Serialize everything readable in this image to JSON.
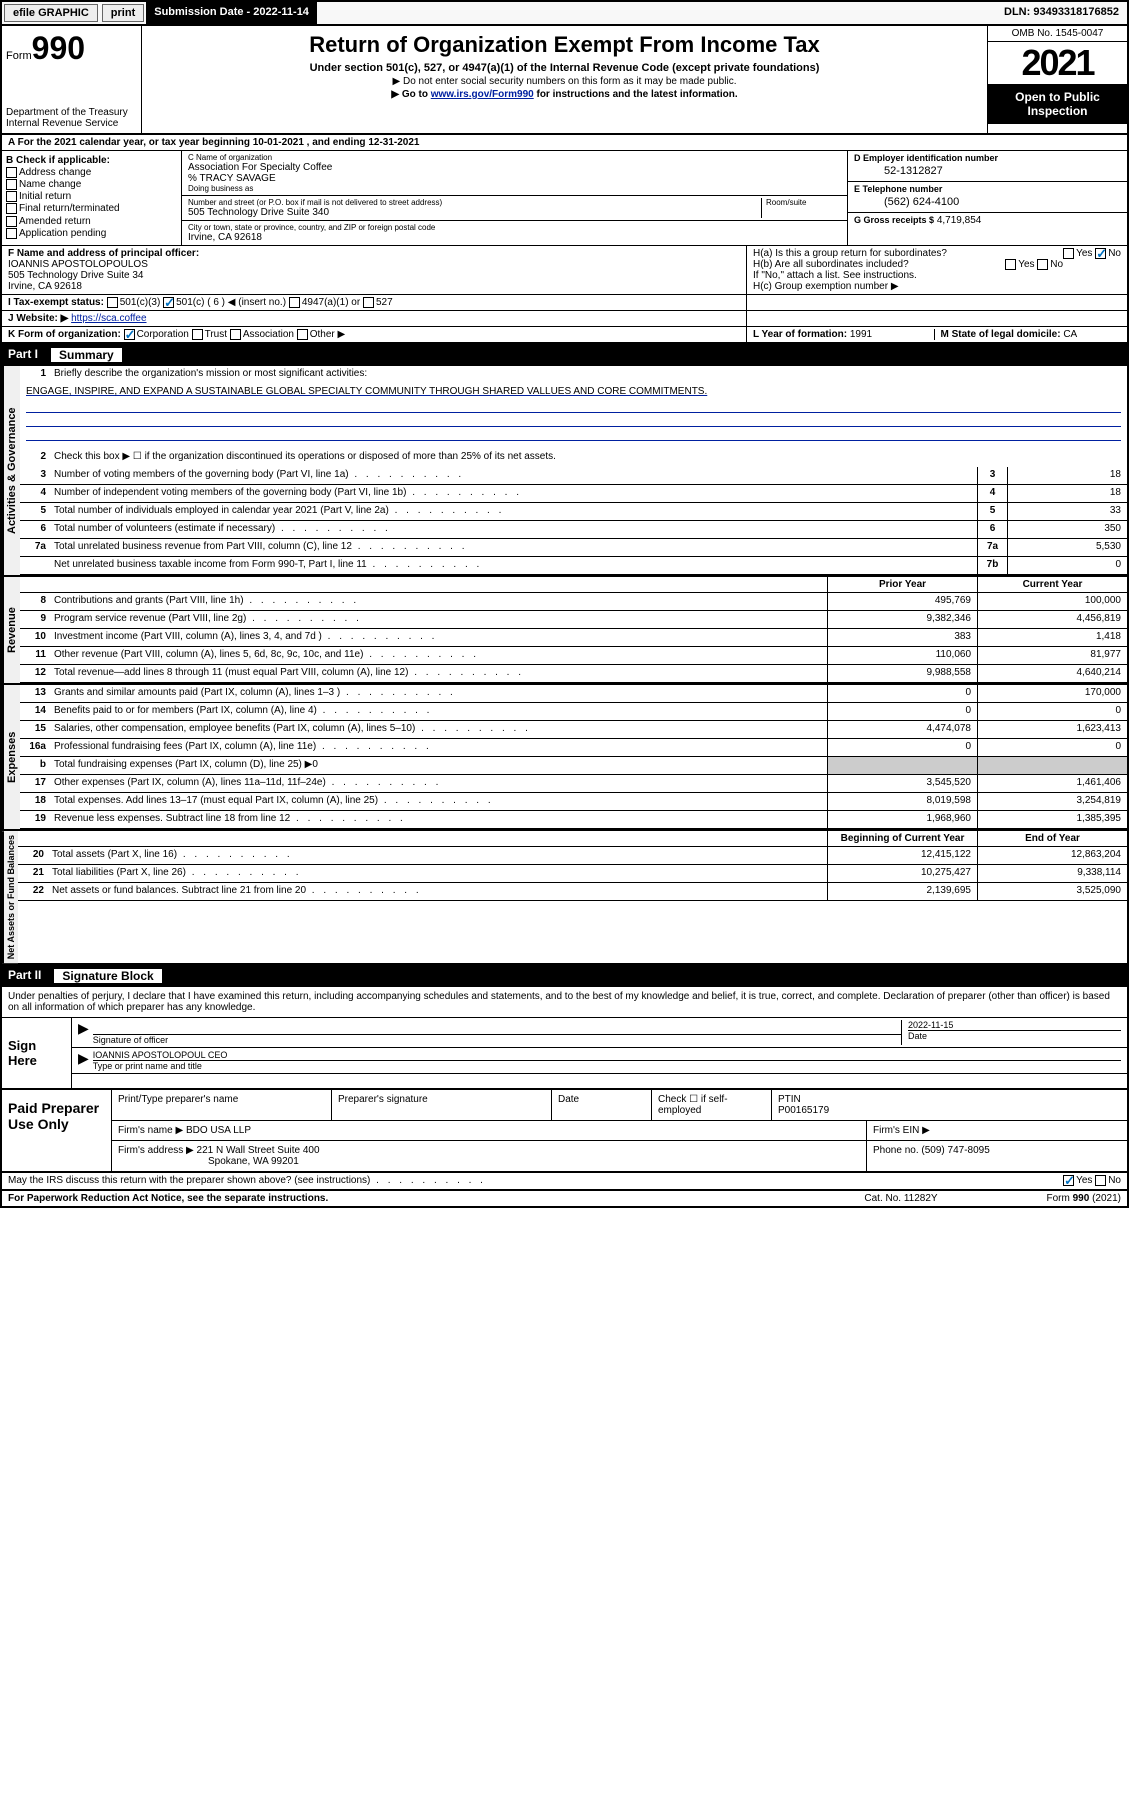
{
  "topbar": {
    "efile": "efile GRAPHIC",
    "print": "print",
    "subdate_label": "Submission Date - 2022-11-14",
    "dln": "DLN: 93493318176852"
  },
  "header": {
    "form_prefix": "Form",
    "form_number": "990",
    "dept": "Department of the Treasury\nInternal Revenue Service",
    "title": "Return of Organization Exempt From Income Tax",
    "subtitle": "Under section 501(c), 527, or 4947(a)(1) of the Internal Revenue Code (except private foundations)",
    "note1": "▶ Do not enter social security numbers on this form as it may be made public.",
    "note2_pre": "▶ Go to ",
    "note2_link": "www.irs.gov/Form990",
    "note2_post": " for instructions and the latest information.",
    "omb": "OMB No. 1545-0047",
    "year": "2021",
    "open_public": "Open to Public Inspection"
  },
  "period": {
    "line_a": "A For the 2021 calendar year, or tax year beginning 10-01-2021   , and ending 12-31-2021"
  },
  "box_b": {
    "label": "B Check if applicable:",
    "items": [
      "Address change",
      "Name change",
      "Initial return",
      "Final return/terminated",
      "Amended return",
      "Application pending"
    ]
  },
  "box_c": {
    "name_label": "C Name of organization",
    "name": "Association For Specialty Coffee",
    "care_of": "% TRACY SAVAGE",
    "dba_label": "Doing business as",
    "street_label": "Number and street (or P.O. box if mail is not delivered to street address)",
    "room_label": "Room/suite",
    "street": "505 Technology Drive Suite 340",
    "city_label": "City or town, state or province, country, and ZIP or foreign postal code",
    "city": "Irvine, CA  92618"
  },
  "box_d": {
    "ein_label": "D Employer identification number",
    "ein": "52-1312827",
    "phone_label": "E Telephone number",
    "phone": "(562) 624-4100",
    "gross_label": "G Gross receipts $",
    "gross": "4,719,854"
  },
  "box_f": {
    "label": "F Name and address of principal officer:",
    "name": "IOANNIS APOSTOLOPOULOS",
    "addr1": "505 Technology Drive Suite 34",
    "addr2": "Irvine, CA  92618"
  },
  "box_h": {
    "ha": "H(a)  Is this a group return for subordinates?",
    "hb": "H(b)  Are all subordinates included?",
    "hb_note": "If \"No,\" attach a list. See instructions.",
    "hc": "H(c)  Group exemption number ▶",
    "yes": "Yes",
    "no": "No"
  },
  "box_i": {
    "label": "I   Tax-exempt status:",
    "opt1": "501(c)(3)",
    "opt2": "501(c) ( 6 ) ◀ (insert no.)",
    "opt3": "4947(a)(1) or",
    "opt4": "527"
  },
  "box_j": {
    "label": "J   Website: ▶",
    "url": "https://sca.coffee"
  },
  "box_k": {
    "label": "K Form of organization:",
    "opts": [
      "Corporation",
      "Trust",
      "Association",
      "Other ▶"
    ]
  },
  "box_l": {
    "label": "L Year of formation:",
    "value": "1991"
  },
  "box_m": {
    "label": "M State of legal domicile:",
    "value": "CA"
  },
  "part1": {
    "num": "Part I",
    "title": "Summary"
  },
  "governance": {
    "label": "Activities & Governance",
    "line1": "Briefly describe the organization's mission or most significant activities:",
    "mission": "ENGAGE, INSPIRE, AND EXPAND A SUSTAINABLE GLOBAL SPECIALTY COMMUNITY THROUGH SHARED VALLUES AND CORE COMMITMENTS.",
    "line2": "Check this box ▶ ☐  if the organization discontinued its operations or disposed of more than 25% of its net assets.",
    "rows": [
      {
        "n": "3",
        "d": "Number of voting members of the governing body (Part VI, line 1a)",
        "box": "3",
        "v": "18"
      },
      {
        "n": "4",
        "d": "Number of independent voting members of the governing body (Part VI, line 1b)",
        "box": "4",
        "v": "18"
      },
      {
        "n": "5",
        "d": "Total number of individuals employed in calendar year 2021 (Part V, line 2a)",
        "box": "5",
        "v": "33"
      },
      {
        "n": "6",
        "d": "Total number of volunteers (estimate if necessary)",
        "box": "6",
        "v": "350"
      },
      {
        "n": "7a",
        "d": "Total unrelated business revenue from Part VIII, column (C), line 12",
        "box": "7a",
        "v": "5,530"
      },
      {
        "n": "",
        "d": "Net unrelated business taxable income from Form 990-T, Part I, line 11",
        "box": "7b",
        "v": "0"
      }
    ]
  },
  "revenue": {
    "label": "Revenue",
    "head_prior": "Prior Year",
    "head_current": "Current Year",
    "rows": [
      {
        "n": "8",
        "d": "Contributions and grants (Part VIII, line 1h)",
        "p": "495,769",
        "c": "100,000"
      },
      {
        "n": "9",
        "d": "Program service revenue (Part VIII, line 2g)",
        "p": "9,382,346",
        "c": "4,456,819"
      },
      {
        "n": "10",
        "d": "Investment income (Part VIII, column (A), lines 3, 4, and 7d )",
        "p": "383",
        "c": "1,418"
      },
      {
        "n": "11",
        "d": "Other revenue (Part VIII, column (A), lines 5, 6d, 8c, 9c, 10c, and 11e)",
        "p": "110,060",
        "c": "81,977"
      },
      {
        "n": "12",
        "d": "Total revenue—add lines 8 through 11 (must equal Part VIII, column (A), line 12)",
        "p": "9,988,558",
        "c": "4,640,214"
      }
    ]
  },
  "expenses": {
    "label": "Expenses",
    "rows": [
      {
        "n": "13",
        "d": "Grants and similar amounts paid (Part IX, column (A), lines 1–3 )",
        "p": "0",
        "c": "170,000"
      },
      {
        "n": "14",
        "d": "Benefits paid to or for members (Part IX, column (A), line 4)",
        "p": "0",
        "c": "0"
      },
      {
        "n": "15",
        "d": "Salaries, other compensation, employee benefits (Part IX, column (A), lines 5–10)",
        "p": "4,474,078",
        "c": "1,623,413"
      },
      {
        "n": "16a",
        "d": "Professional fundraising fees (Part IX, column (A), line 11e)",
        "p": "0",
        "c": "0"
      },
      {
        "n": "b",
        "d": "Total fundraising expenses (Part IX, column (D), line 25) ▶0",
        "p": "",
        "c": "",
        "shaded": true
      },
      {
        "n": "17",
        "d": "Other expenses (Part IX, column (A), lines 11a–11d, 11f–24e)",
        "p": "3,545,520",
        "c": "1,461,406"
      },
      {
        "n": "18",
        "d": "Total expenses. Add lines 13–17 (must equal Part IX, column (A), line 25)",
        "p": "8,019,598",
        "c": "3,254,819"
      },
      {
        "n": "19",
        "d": "Revenue less expenses. Subtract line 18 from line 12",
        "p": "1,968,960",
        "c": "1,385,395"
      }
    ]
  },
  "netassets": {
    "label": "Net Assets or Fund Balances",
    "head_begin": "Beginning of Current Year",
    "head_end": "End of Year",
    "rows": [
      {
        "n": "20",
        "d": "Total assets (Part X, line 16)",
        "p": "12,415,122",
        "c": "12,863,204"
      },
      {
        "n": "21",
        "d": "Total liabilities (Part X, line 26)",
        "p": "10,275,427",
        "c": "9,338,114"
      },
      {
        "n": "22",
        "d": "Net assets or fund balances. Subtract line 21 from line 20",
        "p": "2,139,695",
        "c": "3,525,090"
      }
    ]
  },
  "part2": {
    "num": "Part II",
    "title": "Signature Block"
  },
  "penalties": "Under penalties of perjury, I declare that I have examined this return, including accompanying schedules and statements, and to the best of my knowledge and belief, it is true, correct, and complete. Declaration of preparer (other than officer) is based on all information of which preparer has any knowledge.",
  "sign": {
    "label": "Sign Here",
    "sig_label": "Signature of officer",
    "date_label": "Date",
    "date_value": "2022-11-15",
    "name": "IOANNIS APOSTOLOPOUL CEO",
    "name_label": "Type or print name and title"
  },
  "preparer": {
    "label": "Paid Preparer Use Only",
    "head": [
      "Print/Type preparer's name",
      "Preparer's signature",
      "Date"
    ],
    "check_label": "Check ☐ if self-employed",
    "ptin_label": "PTIN",
    "ptin": "P00165179",
    "firm_name_label": "Firm's name    ▶",
    "firm_name": "BDO USA LLP",
    "firm_ein_label": "Firm's EIN ▶",
    "firm_addr_label": "Firm's address ▶",
    "firm_addr1": "221 N Wall Street Suite 400",
    "firm_addr2": "Spokane, WA  99201",
    "phone_label": "Phone no.",
    "phone": "(509) 747-8095"
  },
  "discuss": {
    "text": "May the IRS discuss this return with the preparer shown above? (see instructions)",
    "yes": "Yes",
    "no": "No"
  },
  "footer": {
    "left": "For Paperwork Reduction Act Notice, see the separate instructions.",
    "mid": "Cat. No. 11282Y",
    "right_pre": "Form ",
    "right_num": "990",
    "right_post": " (2021)"
  }
}
